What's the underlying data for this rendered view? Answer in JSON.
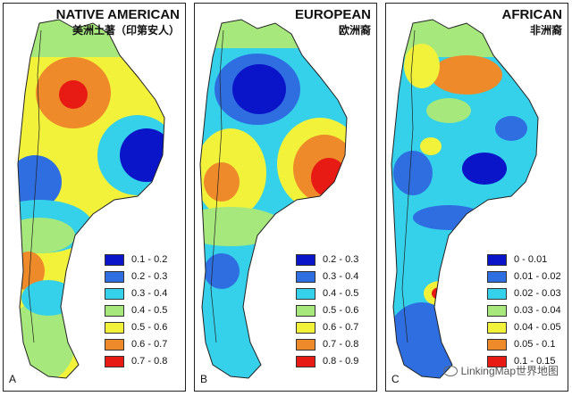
{
  "panels": [
    {
      "title": "NATIVE AMERICAN",
      "subtitle": "美洲土著（印第安人）",
      "letter": "A",
      "legend": [
        {
          "label": "0.1 - 0.2",
          "color": "#0a14c8"
        },
        {
          "label": "0.2 - 0.3",
          "color": "#2e6ee0"
        },
        {
          "label": "0.3 - 0.4",
          "color": "#35d0ea"
        },
        {
          "label": "0.4 - 0.5",
          "color": "#a6e87c"
        },
        {
          "label": "0.5 - 0.6",
          "color": "#f2f23a"
        },
        {
          "label": "0.6 - 0.7",
          "color": "#ee8a2a"
        },
        {
          "label": "0.7 - 0.8",
          "color": "#e81a14"
        }
      ]
    },
    {
      "title": "EUROPEAN",
      "subtitle": "欧洲裔",
      "letter": "B",
      "legend": [
        {
          "label": "0.2 - 0.3",
          "color": "#0a14c8"
        },
        {
          "label": "0.3 - 0.4",
          "color": "#2e6ee0"
        },
        {
          "label": "0.4 - 0.5",
          "color": "#35d0ea"
        },
        {
          "label": "0.5 - 0.6",
          "color": "#a6e87c"
        },
        {
          "label": "0.6 - 0.7",
          "color": "#f2f23a"
        },
        {
          "label": "0.7 - 0.8",
          "color": "#ee8a2a"
        },
        {
          "label": "0.8 - 0.9",
          "color": "#e81a14"
        }
      ]
    },
    {
      "title": "AFRICAN",
      "subtitle": "非洲裔",
      "letter": "C",
      "legend": [
        {
          "label": "0 - 0.01",
          "color": "#0a14c8"
        },
        {
          "label": "0.01 - 0.02",
          "color": "#2e6ee0"
        },
        {
          "label": "0.02 - 0.03",
          "color": "#35d0ea"
        },
        {
          "label": "0.03 - 0.04",
          "color": "#a6e87c"
        },
        {
          "label": "0.04 - 0.05",
          "color": "#f2f23a"
        },
        {
          "label": "0.05 - 0.1",
          "color": "#ee8a2a"
        },
        {
          "label": "0.1 - 0.15",
          "color": "#e81a14"
        }
      ]
    }
  ],
  "watermark": "LinkingMap世界地图"
}
